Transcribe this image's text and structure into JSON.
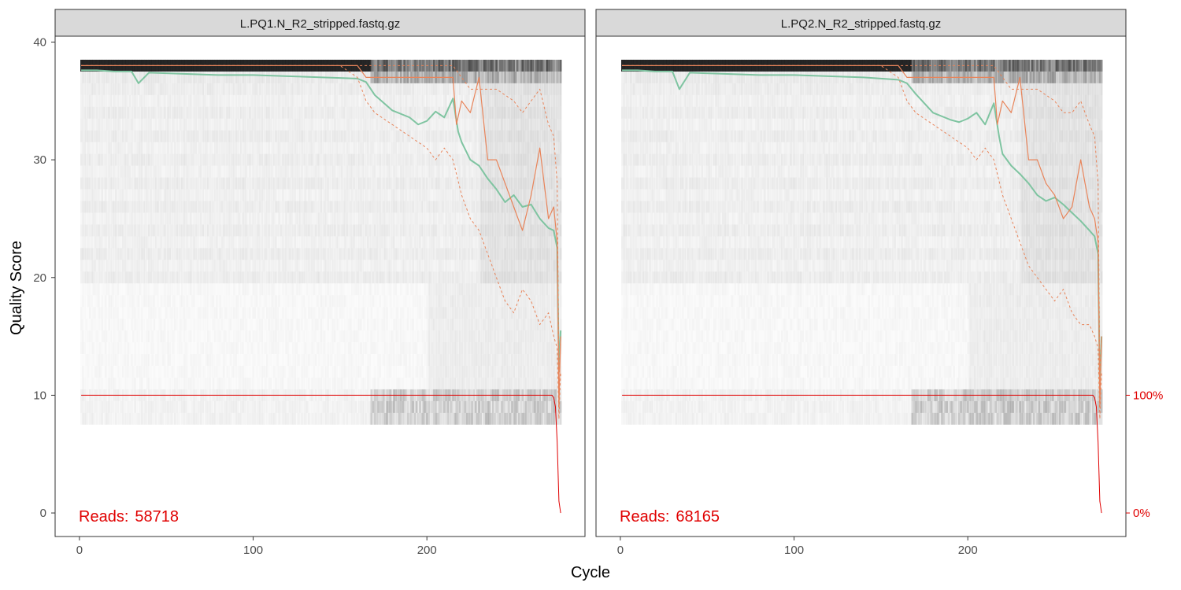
{
  "chart_data": {
    "type": "line",
    "xlabel": "Cycle",
    "ylabel": "Quality Score",
    "xlim": [
      -14,
      291
    ],
    "ylim": [
      -2,
      40.5
    ],
    "x_ticks": [
      "0",
      "100",
      "200"
    ],
    "y_ticks": [
      "0",
      "10",
      "20",
      "30",
      "40"
    ],
    "secondary_axis": {
      "labels": [
        "100%",
        "0%"
      ],
      "values": [
        10,
        0
      ],
      "color": "#e00000"
    },
    "grid": false,
    "legend": "none",
    "colors": {
      "mean": "#7fc4a1",
      "quantile": "#e8845a",
      "cumulative": "#e00000",
      "heat": "#1a1a1a",
      "strip_fill": "#d9d9d9",
      "panel_border": "#333333"
    },
    "series_labels": [
      "mean quality",
      "median quality",
      "25th/75th percentile",
      "cumulative reads fraction"
    ],
    "panels": [
      {
        "title": "L.PQ1.N_R2_stripped.fastq.gz",
        "reads_label": "Reads:",
        "reads_value": "58718",
        "series": [
          {
            "role": "mean",
            "x": [
              1,
              10,
              20,
              30,
              34,
              40,
              60,
              80,
              100,
              120,
              140,
              160,
              165,
              170,
              180,
              190,
              195,
              200,
              205,
              210,
              215,
              218,
              220,
              225,
              230,
              235,
              240,
              245,
              250,
              255,
              260,
              265,
              270,
              273,
              275,
              276,
              277
            ],
            "y": [
              37.6,
              37.6,
              37.5,
              37.5,
              36.5,
              37.4,
              37.3,
              37.2,
              37.2,
              37.1,
              37.0,
              36.9,
              36.6,
              35.5,
              34.2,
              33.6,
              33.0,
              33.3,
              34.1,
              33.6,
              35.2,
              32.4,
              31.5,
              30.0,
              29.5,
              28.4,
              27.5,
              26.4,
              27.0,
              26.0,
              26.2,
              25.0,
              24.2,
              24.0,
              22.5,
              12.0,
              15.5
            ]
          },
          {
            "role": "median",
            "x": [
              1,
              160,
              165,
              170,
              200,
              210,
              215,
              217,
              220,
              225,
              230,
              235,
              240,
              245,
              250,
              255,
              260,
              265,
              270,
              273,
              275,
              276,
              277
            ],
            "y": [
              38,
              38,
              37,
              37,
              37,
              37,
              37,
              33,
              35,
              34,
              37,
              30,
              30,
              28,
              26,
              24,
              27,
              31,
              25,
              26,
              23,
              9,
              15
            ]
          },
          {
            "role": "q25",
            "x": [
              1,
              150,
              160,
              165,
              170,
              180,
              190,
              200,
              205,
              210,
              215,
              220,
              225,
              230,
              235,
              240,
              245,
              250,
              255,
              260,
              265,
              270,
              273,
              275,
              276,
              277
            ],
            "y": [
              38,
              38,
              37,
              35,
              34,
              33,
              32,
              31,
              30,
              31,
              30,
              27,
              25,
              24,
              22,
              20,
              18,
              17,
              19,
              18,
              16,
              17,
              15,
              14,
              8,
              12
            ]
          },
          {
            "role": "q75",
            "x": [
              1,
              160,
              170,
              200,
              210,
              215,
              220,
              225,
              230,
              240,
              250,
              255,
              260,
              265,
              270,
              273,
              275,
              276,
              277
            ],
            "y": [
              38,
              38,
              38,
              38,
              38,
              38,
              37,
              36,
              36,
              36,
              35,
              34,
              35,
              36,
              33,
              32,
              28,
              12,
              15
            ]
          },
          {
            "role": "cumulative",
            "x": [
              1,
              270,
              272,
              273,
              274,
              275,
              276,
              277
            ],
            "y": [
              10,
              10,
              10,
              9.8,
              9,
              6,
              1,
              0
            ]
          }
        ]
      },
      {
        "title": "L.PQ2.N_R2_stripped.fastq.gz",
        "reads_label": "Reads:",
        "reads_value": "68165",
        "series": [
          {
            "role": "mean",
            "x": [
              1,
              10,
              20,
              30,
              34,
              40,
              60,
              80,
              100,
              120,
              140,
              160,
              165,
              170,
              180,
              190,
              195,
              200,
              205,
              210,
              215,
              218,
              220,
              225,
              230,
              235,
              240,
              245,
              250,
              255,
              260,
              265,
              270,
              273,
              275,
              276,
              277
            ],
            "y": [
              37.6,
              37.6,
              37.5,
              37.5,
              36.0,
              37.4,
              37.3,
              37.2,
              37.2,
              37.1,
              37.0,
              36.8,
              36.5,
              35.6,
              34.0,
              33.4,
              33.2,
              33.5,
              34.0,
              33.0,
              34.8,
              32.0,
              30.5,
              29.5,
              28.8,
              28.0,
              27.0,
              26.5,
              26.8,
              26.2,
              25.5,
              24.8,
              24.0,
              23.5,
              22.0,
              10.5,
              15.0
            ]
          },
          {
            "role": "median",
            "x": [
              1,
              160,
              165,
              170,
              200,
              210,
              215,
              217,
              220,
              225,
              230,
              235,
              240,
              245,
              250,
              255,
              260,
              265,
              270,
              273,
              275,
              276,
              277
            ],
            "y": [
              38,
              38,
              37,
              37,
              37,
              37,
              37,
              33,
              35,
              34,
              37,
              30,
              30,
              28,
              27,
              25,
              26,
              30,
              26,
              25,
              23,
              9,
              15
            ]
          },
          {
            "role": "q25",
            "x": [
              1,
              150,
              160,
              165,
              170,
              180,
              190,
              200,
              205,
              210,
              215,
              220,
              225,
              230,
              235,
              240,
              245,
              250,
              255,
              260,
              265,
              270,
              273,
              275,
              276,
              277
            ],
            "y": [
              38,
              38,
              37,
              35,
              34,
              33,
              32,
              31,
              30,
              31,
              30,
              27,
              25,
              23,
              21,
              20,
              19,
              18,
              19,
              17,
              16,
              16,
              15,
              14,
              8,
              12
            ]
          },
          {
            "role": "q75",
            "x": [
              1,
              160,
              170,
              200,
              210,
              215,
              220,
              225,
              230,
              240,
              250,
              255,
              260,
              265,
              270,
              273,
              275,
              276,
              277
            ],
            "y": [
              38,
              38,
              38,
              38,
              38,
              38,
              37,
              36,
              36,
              36,
              35,
              34,
              34,
              35,
              33,
              32,
              28,
              12,
              15
            ]
          },
          {
            "role": "cumulative",
            "x": [
              1,
              270,
              272,
              273,
              274,
              275,
              276,
              277
            ],
            "y": [
              10,
              10,
              10,
              9.8,
              9,
              6,
              1,
              0
            ]
          }
        ]
      }
    ]
  }
}
